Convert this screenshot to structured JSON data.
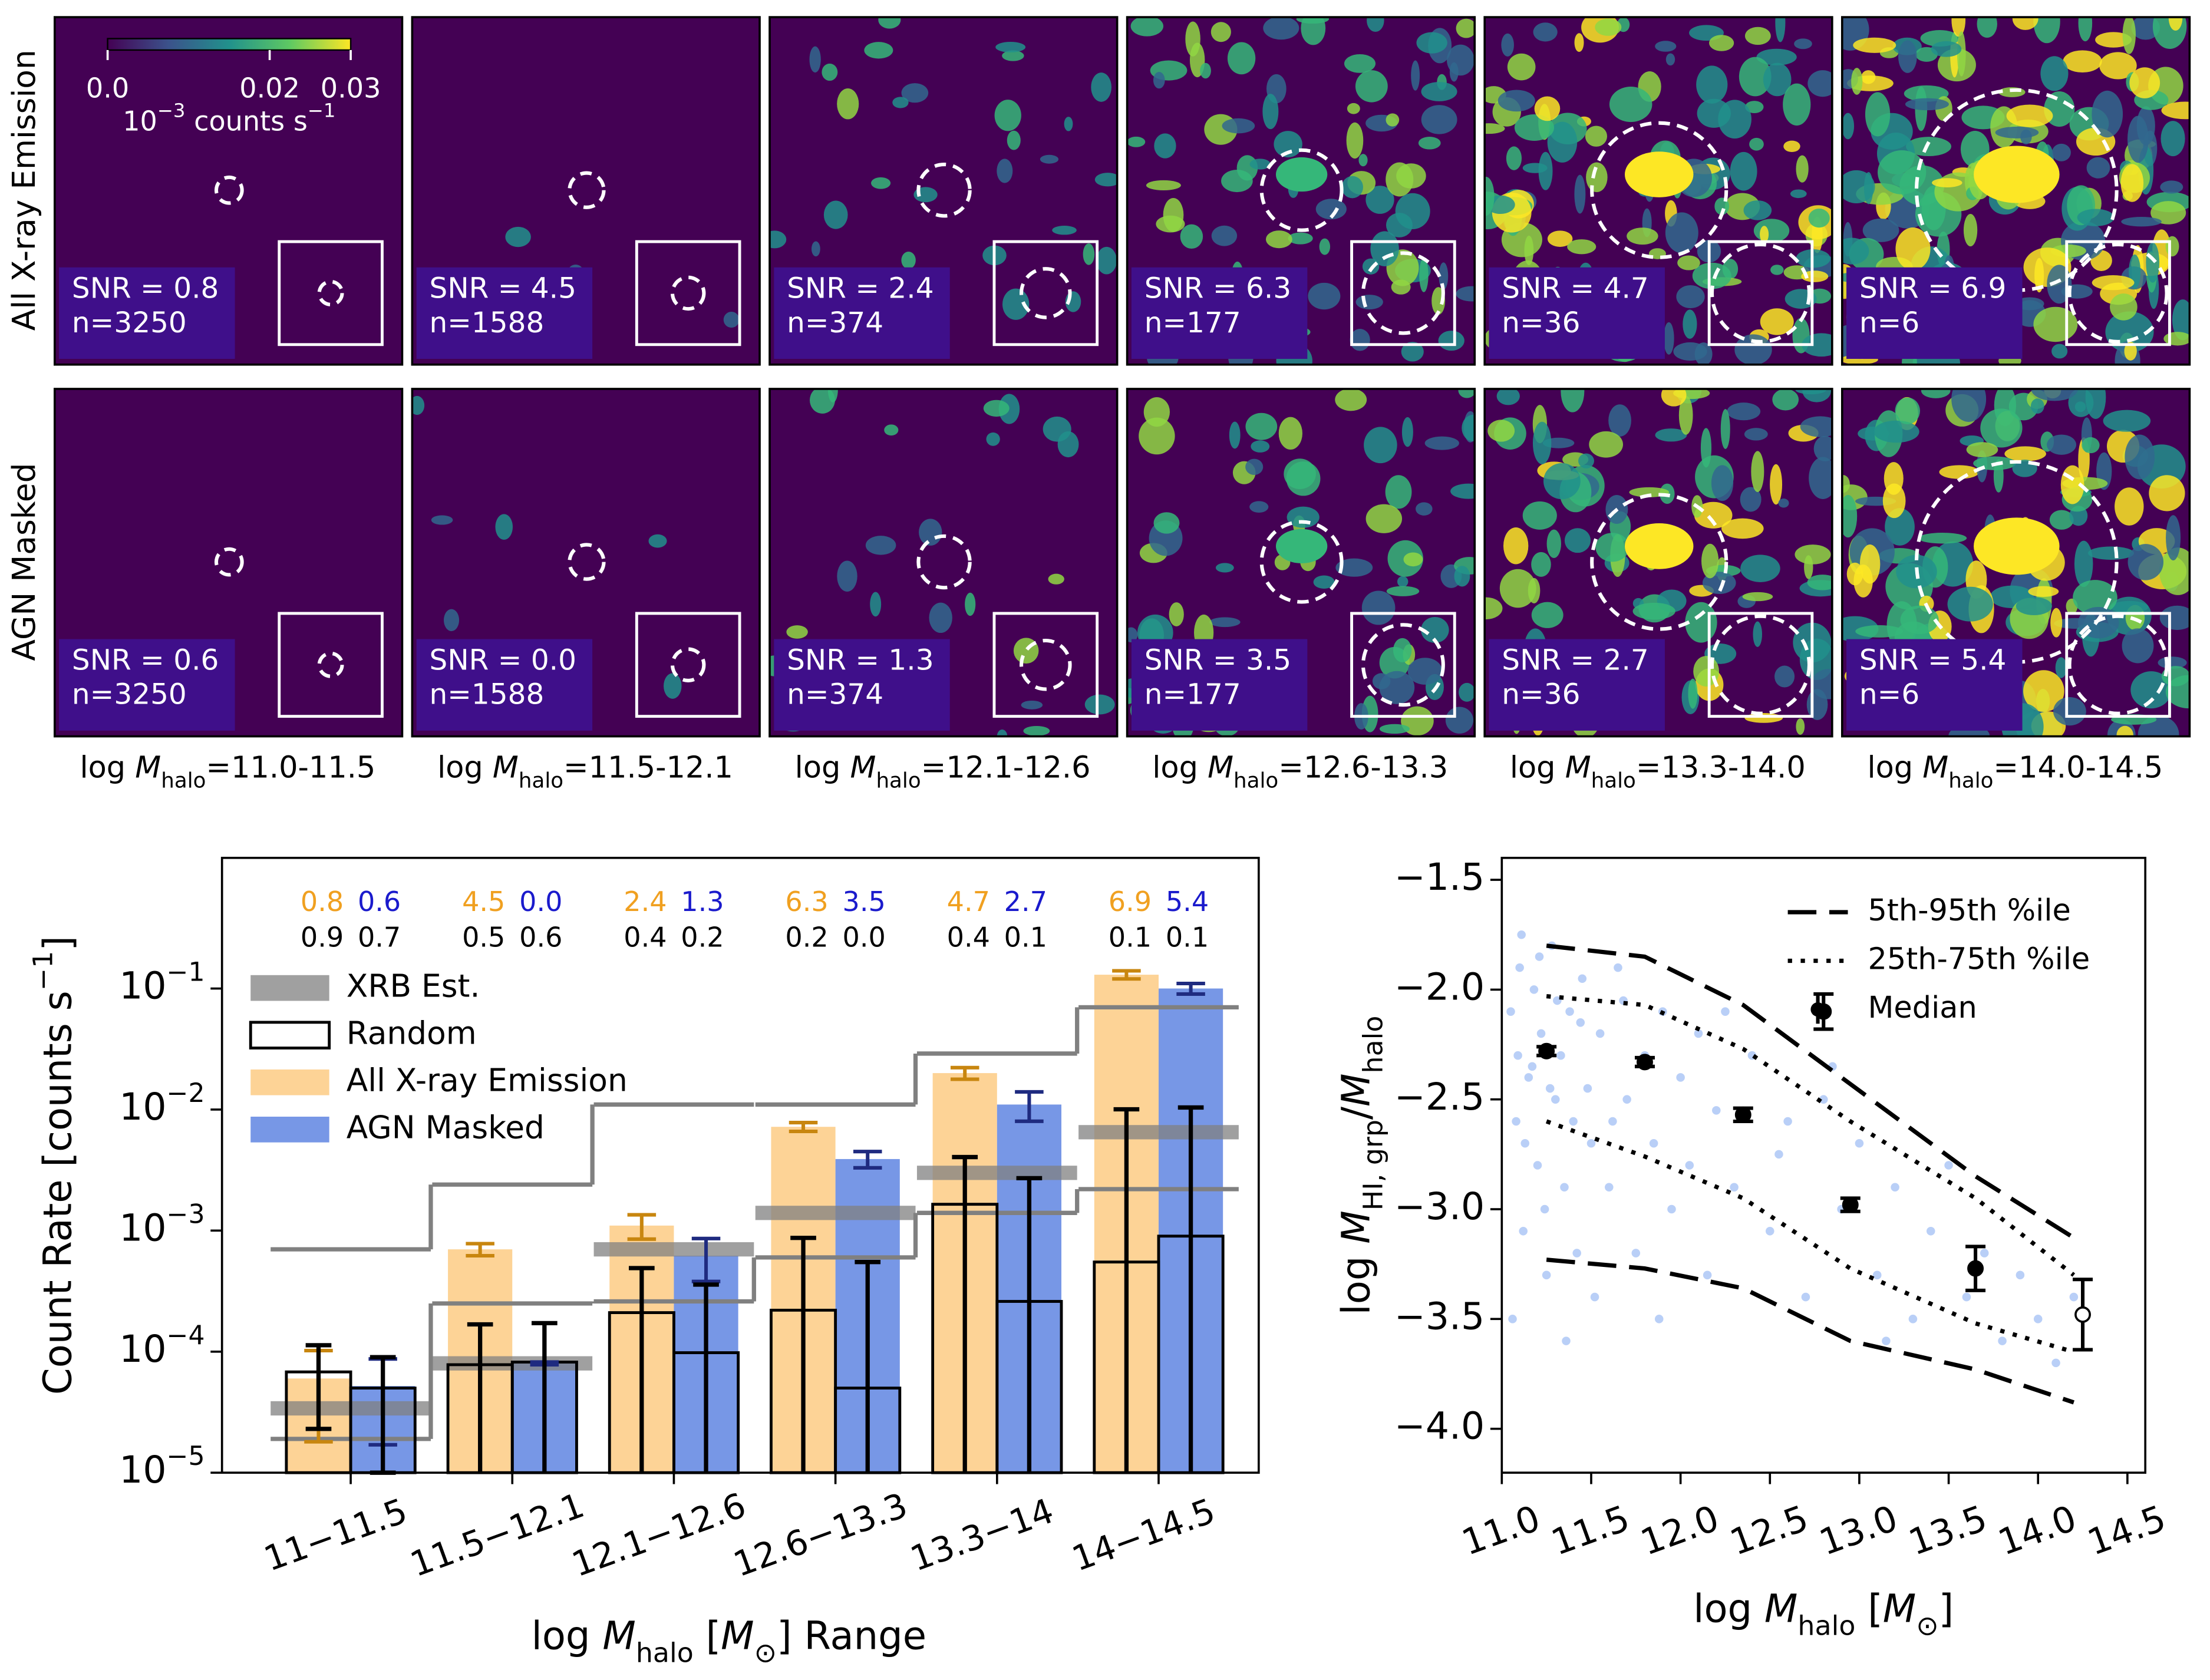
{
  "chart_data": [
    {
      "type": "image_grid",
      "row_labels": [
        "All X-ray Emission",
        "AGN Masked"
      ],
      "column_label_prefix": [
        {
          "text": "log "
        },
        {
          "text": "M",
          "italic": true
        },
        {
          "text": "halo",
          "sub": true
        },
        {
          "text": "="
        }
      ],
      "column_ranges": [
        "11.0-11.5",
        "11.5-12.1",
        "12.1-12.6",
        "12.6-13.3",
        "13.3-14.0",
        "14.0-14.5"
      ],
      "panels": [
        [
          {
            "snr": "SNR = 0.8",
            "n": "n=3250"
          },
          {
            "snr": "SNR = 4.5",
            "n": "n=1588"
          },
          {
            "snr": "SNR = 2.4",
            "n": "n=374"
          },
          {
            "snr": "SNR = 6.3",
            "n": "n=177"
          },
          {
            "snr": "SNR = 4.7",
            "n": "n=36"
          },
          {
            "snr": "SNR = 6.9",
            "n": "n=6"
          }
        ],
        [
          {
            "snr": "SNR = 0.6",
            "n": "n=3250"
          },
          {
            "snr": "SNR = 0.0",
            "n": "n=1588"
          },
          {
            "snr": "SNR = 1.3",
            "n": "n=374"
          },
          {
            "snr": "SNR = 3.5",
            "n": "n=177"
          },
          {
            "snr": "SNR = 2.7",
            "n": "n=36"
          },
          {
            "snr": "SNR = 5.4",
            "n": "n=6"
          }
        ]
      ],
      "colorbar": {
        "lim": [
          0,
          0.03
        ],
        "ticks": [
          {
            "value": 0,
            "label": "0.0"
          },
          0.02,
          0.03
        ],
        "label": [
          {
            "text": "10"
          },
          {
            "text": "−3",
            "sup": true
          },
          {
            "text": " counts s"
          },
          {
            "text": "−1",
            "sup": true
          }
        ]
      }
    },
    {
      "type": "bar",
      "log_y": true,
      "ylim": [
        1e-05,
        1.2
      ],
      "yticks": [
        {
          "value": 1e-05,
          "label": [
            {
              "text": "10"
            },
            {
              "text": "−5",
              "sup": true
            }
          ]
        },
        {
          "value": 0.0001,
          "label": [
            {
              "text": "10"
            },
            {
              "text": "−4",
              "sup": true
            }
          ]
        },
        {
          "value": 0.001,
          "label": [
            {
              "text": "10"
            },
            {
              "text": "−3",
              "sup": true
            }
          ]
        },
        {
          "value": 0.01,
          "label": [
            {
              "text": "10"
            },
            {
              "text": "−2",
              "sup": true
            }
          ]
        },
        {
          "value": 0.1,
          "label": [
            {
              "text": "10"
            },
            {
              "text": "−1",
              "sup": true
            }
          ]
        }
      ],
      "categories": [
        "11−11.5",
        "11.5−12.1",
        "12.1−12.6",
        "12.6−13.3",
        "13.3−14",
        "14−14.5"
      ],
      "ylabel": [
        {
          "text": "Count Rate [counts s"
        },
        {
          "text": "−1",
          "sup": true
        },
        {
          "text": "]"
        }
      ],
      "xlabel": [
        {
          "text": "log "
        },
        {
          "text": "M",
          "italic": true
        },
        {
          "text": "halo",
          "sub": true
        },
        {
          "text": " ["
        },
        {
          "text": "M",
          "italic": true
        },
        {
          "text": "⊙",
          "sub": true
        },
        {
          "text": "] Range"
        }
      ],
      "series": [
        {
          "name": "All X-ray Emission",
          "color": "#fdd396",
          "error_color": "#c8860f",
          "values": [
            6e-05,
            0.0007,
            0.0011,
            0.0072,
            0.02,
            0.13
          ],
          "errors": [
            4.2e-05,
            8e-05,
            0.00025,
            0.0006,
            0.0022,
            0.01
          ]
        },
        {
          "name": "AGN Masked",
          "color": "#7797e6",
          "error_color": "#1f2b80",
          "values": [
            5.2e-05,
            8e-05,
            0.00062,
            0.0039,
            0.011,
            0.1
          ],
          "errors": [
            3.5e-05,
            2e-06,
            0.00024,
            0.0006,
            0.003,
            0.01
          ]
        }
      ],
      "random": {
        "name": "Random",
        "color": "#000000",
        "values_all": [
          6.8e-05,
          7.8e-05,
          0.00021,
          0.00022,
          0.00165,
          0.00055
        ],
        "errors_all": [
          4.5e-05,
          9e-05,
          0.00028,
          0.00065,
          0.0024,
          0.0095
        ],
        "values_masked": [
          5e-05,
          8.2e-05,
          9.8e-05,
          5e-05,
          0.00026,
          0.0009
        ],
        "errors_masked": [
          4e-05,
          9e-05,
          0.00026,
          0.0005,
          0.00245,
          0.0095
        ]
      },
      "xrb": {
        "name": "XRB Est.",
        "color": "#808080",
        "values": [
          3.4e-05,
          8e-05,
          0.0007,
          0.0014,
          0.003,
          0.0065
        ],
        "lower": [
          1.9e-05,
          0.00025,
          0.00026,
          0.0006,
          0.0014,
          0.0022
        ],
        "upper": [
          0.0007,
          0.0024,
          0.011,
          0.011,
          0.029,
          0.07
        ]
      },
      "annotations": {
        "snr_all": [
          "0.8",
          "4.5",
          "2.4",
          "6.3",
          "4.7",
          "6.9"
        ],
        "snr_masked": [
          "0.6",
          "0.0",
          "1.3",
          "3.5",
          "2.7",
          "5.4"
        ],
        "random_all": [
          "0.9",
          "0.5",
          "0.4",
          "0.2",
          "0.4",
          "0.1"
        ],
        "random_masked": [
          "0.7",
          "0.6",
          "0.2",
          "0.0",
          "0.1",
          "0.1"
        ],
        "colors": [
          "#f0a020",
          "#1a1acc",
          "#000000"
        ]
      },
      "legend": "upper left"
    },
    {
      "type": "scatter",
      "xlim": [
        11.0,
        14.6
      ],
      "ylim": [
        -4.2,
        -1.4
      ],
      "xticks": [
        {
          "value": 11,
          "label": "11.0"
        },
        11.5,
        {
          "value": 12,
          "label": "12.0"
        },
        12.5,
        {
          "value": 13,
          "label": "13.0"
        },
        13.5,
        {
          "value": 14,
          "label": "14.0"
        },
        14.5
      ],
      "yticks": [
        {
          "value": -1.5,
          "label": "−1.5"
        },
        {
          "value": -2,
          "label": "−2.0"
        },
        {
          "value": -2.5,
          "label": "−2.5"
        },
        {
          "value": -3,
          "label": "−3.0"
        },
        {
          "value": -3.5,
          "label": "−3.5"
        },
        {
          "value": -4,
          "label": "−4.0"
        }
      ],
      "xlabel": [
        {
          "text": "log "
        },
        {
          "text": "M",
          "italic": true
        },
        {
          "text": "halo",
          "sub": true
        },
        {
          "text": " ["
        },
        {
          "text": "M",
          "italic": true
        },
        {
          "text": "⊙",
          "sub": true
        },
        {
          "text": "]"
        }
      ],
      "ylabel": [
        {
          "text": "log "
        },
        {
          "text": "M",
          "italic": true
        },
        {
          "text": "HI, grp",
          "sub": true
        },
        {
          "text": "/"
        },
        {
          "text": "M",
          "italic": true
        },
        {
          "text": "halo",
          "sub": true
        }
      ],
      "points": {
        "color": "#6495ed",
        "x": [
          11.05,
          11.08,
          11.1,
          11.12,
          11.15,
          11.18,
          11.2,
          11.22,
          11.25,
          11.28,
          11.3,
          11.33,
          11.35,
          11.38,
          11.4,
          11.45,
          11.5,
          11.06,
          11.11,
          11.17,
          11.24,
          11.31,
          11.42,
          11.48,
          11.55,
          11.6,
          11.65,
          11.7,
          11.75,
          11.8,
          11.85,
          11.9,
          11.95,
          12.0,
          12.05,
          12.1,
          12.15,
          12.2,
          12.3,
          12.4,
          12.5,
          12.6,
          12.7,
          12.8,
          12.9,
          13.0,
          13.1,
          13.2,
          13.3,
          13.4,
          13.5,
          13.6,
          13.7,
          13.8,
          13.9,
          14.0,
          14.1,
          14.2,
          11.09,
          11.21,
          11.36,
          11.52,
          11.68,
          11.88,
          12.25,
          12.55,
          12.85,
          13.15,
          11.13,
          11.27,
          11.44,
          11.62
        ],
        "y": [
          -2.1,
          -2.6,
          -1.9,
          -3.1,
          -2.4,
          -2.0,
          -2.8,
          -2.2,
          -3.3,
          -1.8,
          -2.5,
          -2.3,
          -2.9,
          -2.1,
          -2.6,
          -1.95,
          -2.7,
          -3.5,
          -1.75,
          -2.35,
          -3.0,
          -2.05,
          -3.2,
          -2.45,
          -2.2,
          -2.9,
          -1.9,
          -2.5,
          -3.2,
          -2.3,
          -2.7,
          -2.1,
          -3.0,
          -2.4,
          -2.8,
          -2.2,
          -3.3,
          -2.55,
          -2.9,
          -2.3,
          -3.1,
          -2.6,
          -3.4,
          -2.5,
          -3.0,
          -2.7,
          -3.3,
          -2.9,
          -3.5,
          -3.1,
          -2.8,
          -3.4,
          -3.2,
          -3.6,
          -3.3,
          -3.5,
          -3.7,
          -3.4,
          -2.3,
          -1.85,
          -3.6,
          -3.4,
          -2.05,
          -3.5,
          -2.1,
          -2.75,
          -2.35,
          -3.6,
          -2.7,
          -2.45,
          -2.15,
          -2.6
        ]
      },
      "lines": [
        {
          "name": "5th-95th %ile",
          "style": "dashed",
          "x": [
            11.25,
            11.8,
            12.35,
            12.95,
            13.65,
            14.2
          ],
          "upper": [
            -1.8,
            -1.85,
            -2.07,
            -2.43,
            -2.85,
            -3.13
          ],
          "lower": [
            -3.23,
            -3.27,
            -3.36,
            -3.6,
            -3.73,
            -3.88
          ]
        },
        {
          "name": "25th-75th %ile",
          "style": "dotted",
          "x": [
            11.25,
            11.8,
            12.35,
            12.95,
            13.65,
            14.2
          ],
          "upper": [
            -2.03,
            -2.07,
            -2.27,
            -2.6,
            -2.95,
            -3.3
          ],
          "lower": [
            -2.6,
            -2.76,
            -2.95,
            -3.27,
            -3.52,
            -3.65
          ]
        }
      ],
      "median": {
        "name": "Median",
        "x": [
          11.25,
          11.8,
          12.35,
          12.8,
          12.95,
          13.65,
          14.25
        ],
        "values": [
          -2.28,
          -2.33,
          -2.57,
          -2.1,
          -2.98,
          -3.27,
          -3.48
        ],
        "errors": [
          0.02,
          0.02,
          0.03,
          0.08,
          0.03,
          0.1,
          0.16
        ],
        "hollow": [
          false,
          false,
          false,
          false,
          false,
          false,
          true
        ]
      },
      "legend": "upper right"
    }
  ]
}
